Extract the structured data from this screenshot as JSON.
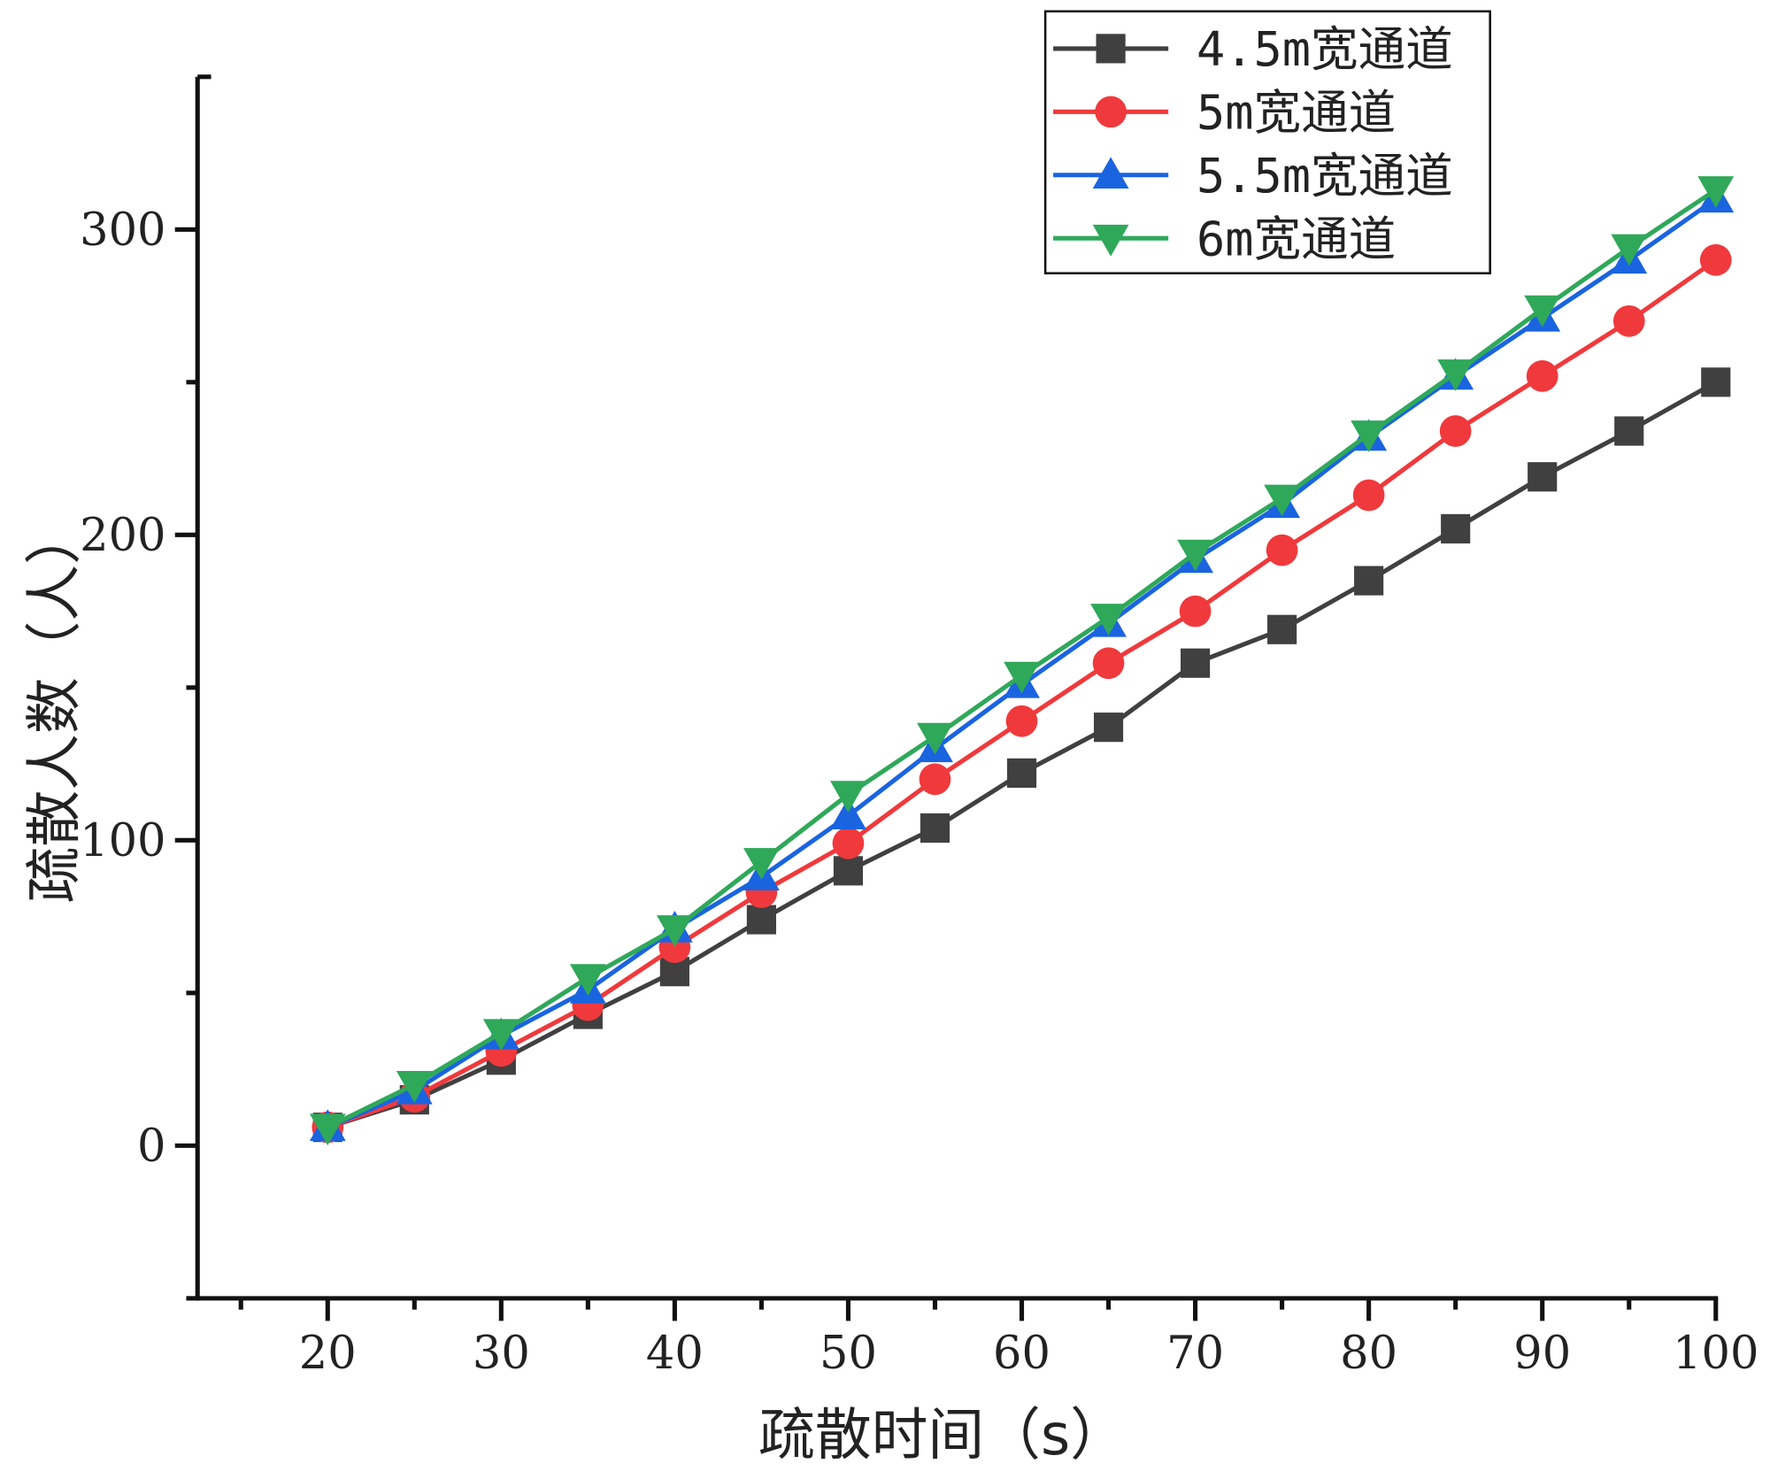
{
  "chart_data": {
    "type": "line",
    "title": "",
    "xlabel": "疏散时间（s）",
    "ylabel": "疏散人数（人）",
    "xlim": [
      12.5,
      100
    ],
    "ylim": [
      -50,
      350
    ],
    "x_ticks": [
      20,
      30,
      40,
      50,
      60,
      70,
      80,
      90,
      100
    ],
    "y_ticks": [
      0,
      100,
      200,
      300
    ],
    "grid": false,
    "legend_position": "top-right",
    "x": [
      20,
      25,
      30,
      35,
      40,
      45,
      50,
      55,
      60,
      65,
      70,
      75,
      80,
      85,
      90,
      95,
      100
    ],
    "series": [
      {
        "name": "4.5m宽通道",
        "color": "#404040",
        "marker": "square",
        "values": [
          6,
          15,
          28,
          43,
          57,
          74,
          90,
          104,
          122,
          137,
          158,
          169,
          185,
          202,
          219,
          234,
          250
        ]
      },
      {
        "name": "5m宽通道",
        "color": "#f0393c",
        "marker": "circle",
        "values": [
          6,
          16,
          31,
          46,
          65,
          83,
          99,
          120,
          139,
          158,
          175,
          195,
          213,
          234,
          252,
          270,
          290
        ]
      },
      {
        "name": "5.5m宽通道",
        "color": "#1a64e0",
        "marker": "triangle-up",
        "values": [
          6,
          18,
          36,
          51,
          71,
          88,
          108,
          130,
          151,
          171,
          192,
          210,
          232,
          252,
          271,
          290,
          310
        ]
      },
      {
        "name": "6m宽通道",
        "color": "#2fa85a",
        "marker": "triangle-down",
        "values": [
          6,
          20,
          37,
          55,
          71,
          93,
          115,
          134,
          154,
          173,
          194,
          212,
          233,
          253,
          274,
          294,
          313
        ]
      }
    ]
  }
}
